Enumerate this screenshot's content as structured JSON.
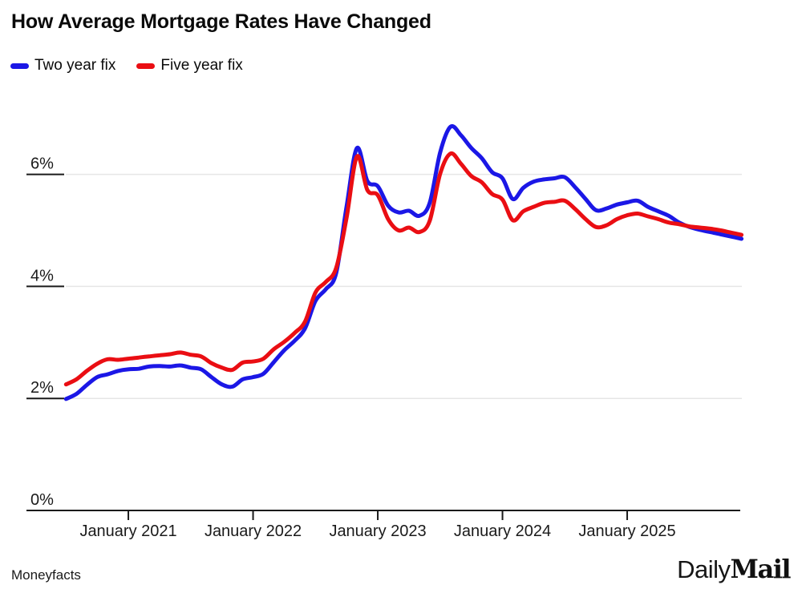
{
  "header": {
    "title": "How Average Mortgage Rates Have Changed"
  },
  "legend": {
    "items": [
      {
        "label": "Two year fix",
        "color": "#1b17e6"
      },
      {
        "label": "Five year fix",
        "color": "#ea0e13"
      }
    ]
  },
  "footer": {
    "source": "Moneyfacts",
    "logo": {
      "part1": "Daily",
      "part2": "Mail"
    }
  },
  "colors": {
    "two_year": "#1b17e6",
    "five_year": "#ea0e13",
    "gridline": "#e6e6e6",
    "axis": "#1a1a1a",
    "text": "#1a1a1a"
  },
  "chart_data": {
    "type": "line",
    "title": "How Average Mortgage Rates Have Changed",
    "source": "Moneyfacts",
    "xlabel": "",
    "ylabel": "",
    "ylim": [
      0,
      7.2
    ],
    "grid": "horizontal",
    "legend_position": "top-left",
    "x": [
      "2020-07",
      "2020-08",
      "2020-09",
      "2020-10",
      "2020-11",
      "2020-12",
      "2021-01",
      "2021-02",
      "2021-03",
      "2021-04",
      "2021-05",
      "2021-06",
      "2021-07",
      "2021-08",
      "2021-09",
      "2021-10",
      "2021-11",
      "2021-12",
      "2022-01",
      "2022-02",
      "2022-03",
      "2022-04",
      "2022-05",
      "2022-06",
      "2022-07",
      "2022-08",
      "2022-09",
      "2022-10",
      "2022-11",
      "2022-12",
      "2023-01",
      "2023-02",
      "2023-03",
      "2023-04",
      "2023-05",
      "2023-06",
      "2023-07",
      "2023-08",
      "2023-09",
      "2023-10",
      "2023-11",
      "2023-12",
      "2024-01",
      "2024-02",
      "2024-03",
      "2024-04",
      "2024-05",
      "2024-06",
      "2024-07",
      "2024-08",
      "2024-09",
      "2024-10",
      "2024-11",
      "2024-12",
      "2025-01",
      "2025-02",
      "2025-03",
      "2025-04",
      "2025-05",
      "2025-06",
      "2025-07",
      "2025-08",
      "2025-09",
      "2025-10",
      "2025-11",
      "2025-12"
    ],
    "series": [
      {
        "name": "Two year fix",
        "color": "#1b17e6",
        "unit": "%",
        "values": [
          1.99,
          2.08,
          2.24,
          2.38,
          2.43,
          2.49,
          2.52,
          2.53,
          2.57,
          2.58,
          2.57,
          2.59,
          2.55,
          2.52,
          2.38,
          2.25,
          2.21,
          2.34,
          2.38,
          2.44,
          2.65,
          2.86,
          3.03,
          3.25,
          3.74,
          3.95,
          4.24,
          5.43,
          6.47,
          5.88,
          5.79,
          5.44,
          5.32,
          5.35,
          5.26,
          5.49,
          6.39,
          6.85,
          6.7,
          6.47,
          6.29,
          6.04,
          5.93,
          5.56,
          5.76,
          5.87,
          5.91,
          5.93,
          5.95,
          5.77,
          5.56,
          5.36,
          5.39,
          5.46,
          5.5,
          5.53,
          5.42,
          5.34,
          5.26,
          5.14,
          5.06,
          5.01,
          4.97,
          4.93,
          4.89,
          4.85
        ]
      },
      {
        "name": "Five year fix",
        "color": "#ea0e13",
        "unit": "%",
        "values": [
          2.25,
          2.34,
          2.49,
          2.62,
          2.7,
          2.69,
          2.71,
          2.73,
          2.75,
          2.77,
          2.79,
          2.82,
          2.78,
          2.75,
          2.63,
          2.55,
          2.51,
          2.64,
          2.66,
          2.71,
          2.88,
          3.01,
          3.17,
          3.37,
          3.89,
          4.08,
          4.33,
          5.23,
          6.32,
          5.72,
          5.63,
          5.2,
          5.0,
          5.05,
          4.97,
          5.17,
          6.01,
          6.37,
          6.19,
          5.97,
          5.86,
          5.65,
          5.55,
          5.18,
          5.34,
          5.42,
          5.49,
          5.51,
          5.53,
          5.38,
          5.2,
          5.06,
          5.09,
          5.2,
          5.27,
          5.3,
          5.25,
          5.2,
          5.14,
          5.11,
          5.07,
          5.05,
          5.03,
          5.0,
          4.96,
          4.92
        ]
      }
    ],
    "x_ticks": [
      {
        "month": "2021-01",
        "label": "January 2021"
      },
      {
        "month": "2022-01",
        "label": "January 2022"
      },
      {
        "month": "2023-01",
        "label": "January 2023"
      },
      {
        "month": "2024-01",
        "label": "January 2024"
      },
      {
        "month": "2025-01",
        "label": "January 2025"
      }
    ],
    "y_ticks": [
      {
        "value": 0,
        "label": "0%"
      },
      {
        "value": 2,
        "label": "2%"
      },
      {
        "value": 4,
        "label": "4%"
      },
      {
        "value": 6,
        "label": "6%"
      }
    ]
  }
}
